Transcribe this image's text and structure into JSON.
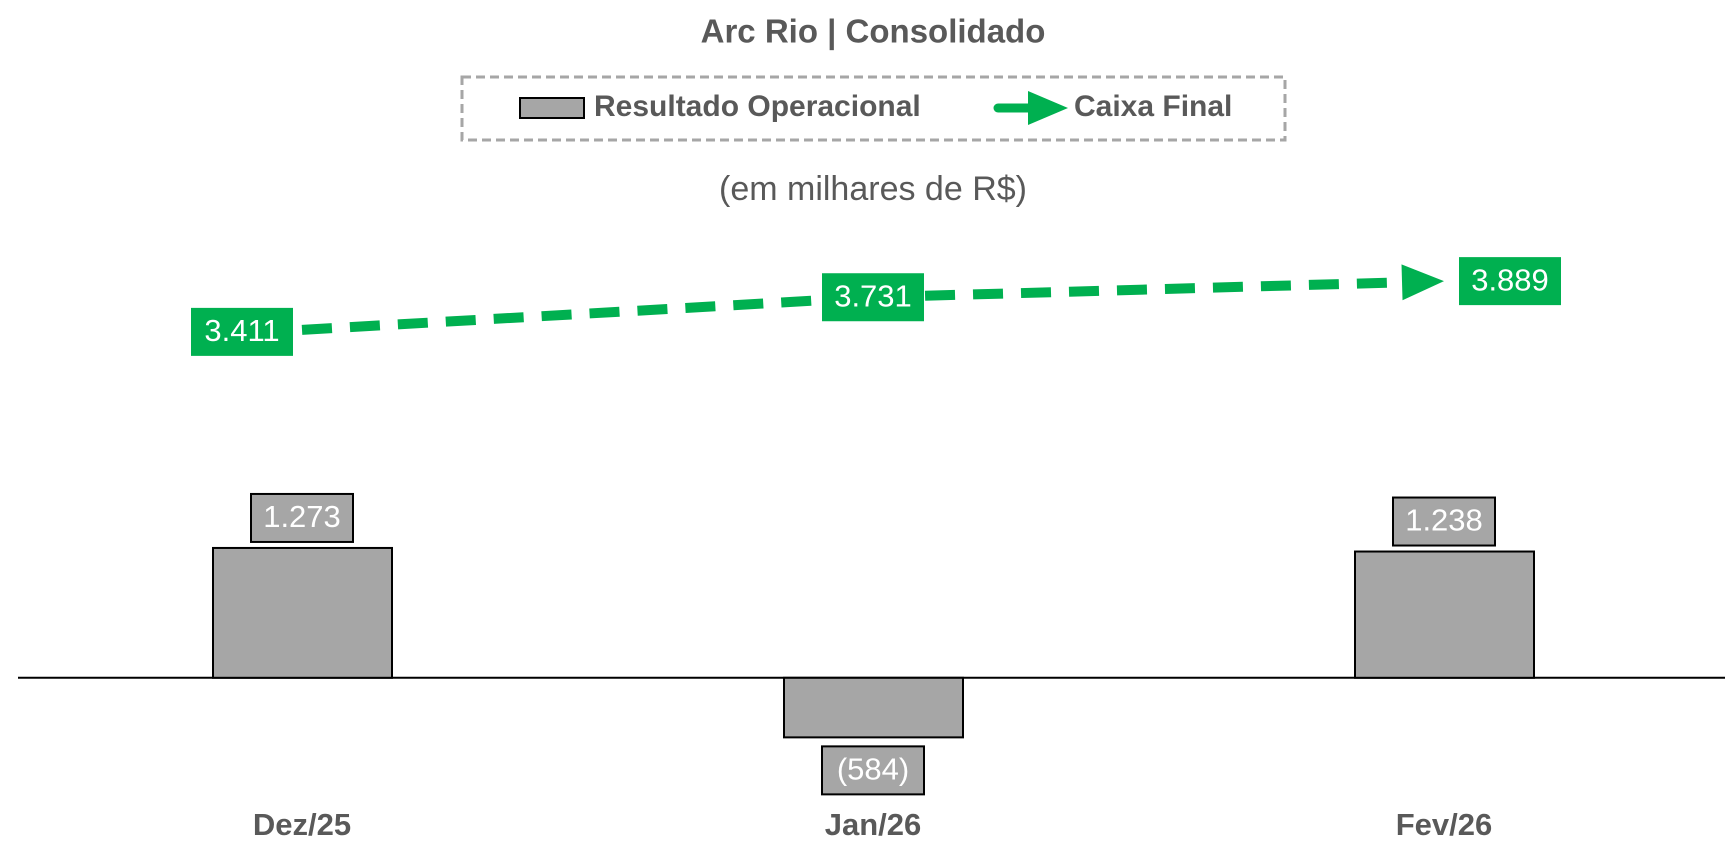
{
  "chart_data": {
    "type": "combo",
    "title": "Arc Rio | Consolidado",
    "subtitle": "(em milhares de R$)",
    "categories": [
      "Dez/25",
      "Jan/26",
      "Fev/26"
    ],
    "series": [
      {
        "name": "Resultado Operacional",
        "type": "bar",
        "color": "#a6a6a6",
        "values": [
          1273,
          -584,
          1238
        ],
        "value_labels": [
          "1.273",
          "(584)",
          "1.238"
        ]
      },
      {
        "name": "Caixa Final",
        "type": "line",
        "color": "#00b050",
        "values": [
          3411,
          3731,
          3889
        ],
        "value_labels": [
          "3.411",
          "3.731",
          "3.889"
        ]
      }
    ],
    "ylim": [
      -1600,
      4400
    ]
  }
}
